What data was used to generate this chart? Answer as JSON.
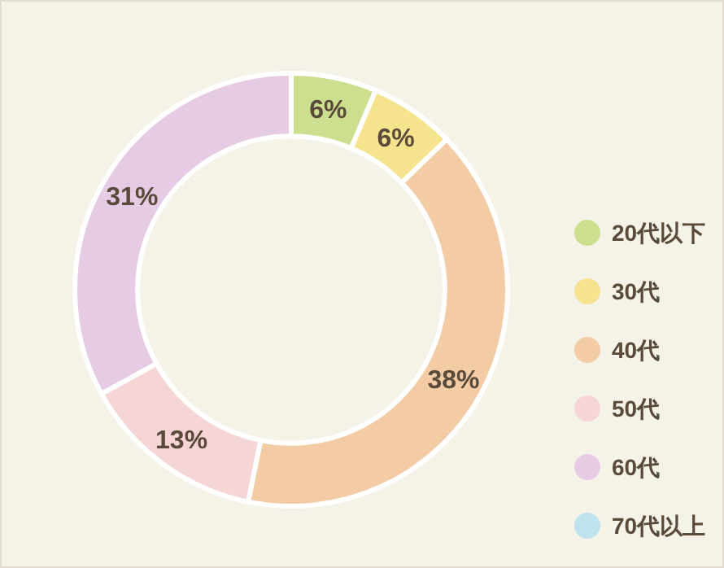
{
  "chart_data": {
    "type": "donut",
    "categories": [
      "20代以下",
      "30代",
      "40代",
      "50代",
      "60代",
      "70代以上"
    ],
    "values": [
      6,
      6,
      38,
      13,
      31,
      0
    ],
    "colors": [
      "#cbdf8f",
      "#f5e38e",
      "#f3cba4",
      "#f5d5d5",
      "#e5cce4",
      "#bfe3ed"
    ],
    "value_labels": [
      "6%",
      "6%",
      "38%",
      "13%",
      "31%",
      null
    ],
    "legend": "right"
  }
}
